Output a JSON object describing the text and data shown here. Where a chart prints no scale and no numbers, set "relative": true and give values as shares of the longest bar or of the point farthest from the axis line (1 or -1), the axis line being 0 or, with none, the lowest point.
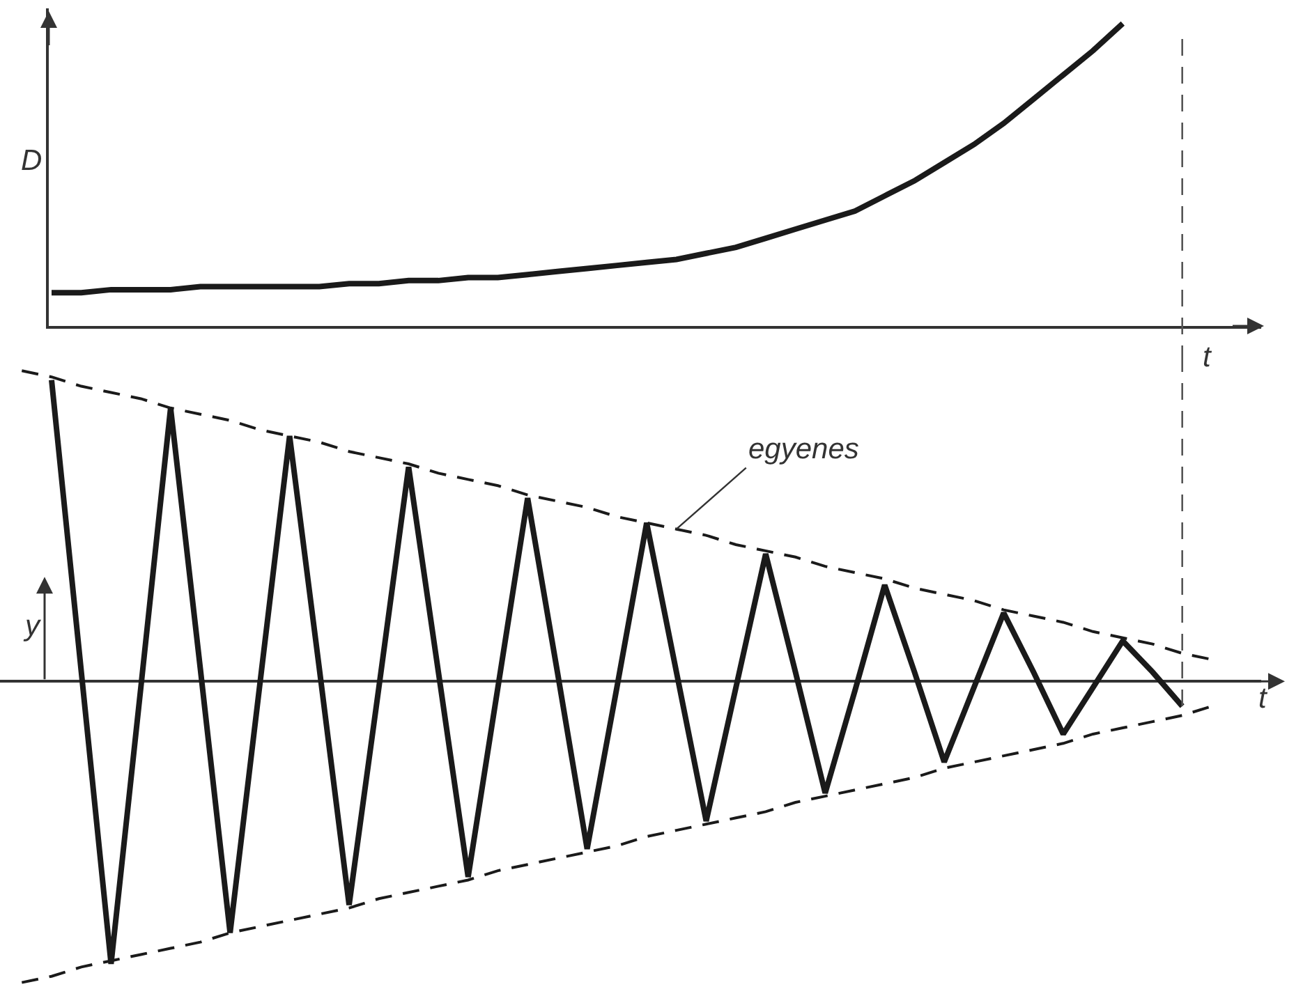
{
  "chart_data": [
    {
      "type": "line",
      "ylabel": "D",
      "xlabel": "t",
      "relative": true,
      "categories": [
        null,
        null,
        null,
        null,
        null,
        null,
        null,
        null,
        null,
        null,
        null,
        null,
        null,
        null,
        null,
        null,
        null,
        null,
        null,
        null,
        null,
        null,
        null,
        null,
        null,
        null,
        null,
        null,
        null,
        null,
        null,
        null,
        null,
        null,
        null,
        null,
        null,
        null,
        null,
        null,
        null
      ],
      "series": [
        {
          "color": "#1a1a1a",
          "values": [
            null,
            0.11,
            0.11,
            0.12,
            0.12,
            0.12,
            0.13,
            0.13,
            0.13,
            0.13,
            0.13,
            0.14,
            0.14,
            0.15,
            0.15,
            0.16,
            0.16,
            0.17,
            0.18,
            0.19,
            0.2,
            0.21,
            0.22,
            0.24,
            0.26,
            0.29,
            0.32,
            0.35,
            0.38,
            0.43,
            0.48,
            0.54,
            0.6,
            0.67,
            0.75,
            0.83,
            0.91,
            1.0,
            null,
            null,
            null
          ]
        }
      ]
    },
    {
      "type": "line",
      "ylabel": "y",
      "xlabel": "t",
      "relative": true,
      "categories": [
        null,
        null,
        null,
        null,
        null,
        null,
        null,
        null,
        null,
        null,
        null,
        null,
        null,
        null,
        null,
        null,
        null,
        null,
        null,
        null,
        null,
        null,
        null,
        null,
        null,
        null,
        null,
        null,
        null,
        null,
        null,
        null,
        null,
        null,
        null,
        null,
        null,
        null,
        null,
        null,
        null
      ],
      "series": [
        {
          "color": "#1a1a1a",
          "values": [
            null,
            0.97,
            0.03,
            -0.91,
            -0.02,
            0.88,
            0.04,
            -0.81,
            -0.01,
            0.79,
            0.04,
            -0.72,
            -0.02,
            0.69,
            0.03,
            -0.63,
            -0.02,
            0.59,
            0.03,
            -0.54,
            -0.02,
            0.51,
            0.03,
            -0.45,
            -0.02,
            0.41,
            0.03,
            -0.36,
            -0.03,
            0.31,
            0.03,
            -0.26,
            -0.02,
            0.22,
            0.03,
            -0.17,
            -0.02,
            0.13,
            0.03,
            -0.08,
            null
          ]
        },
        {
          "color": "#1a1a1a",
          "line_style": "dashed",
          "values": [
            1.0,
            0.98,
            0.95,
            0.93,
            0.91,
            0.88,
            0.86,
            0.84,
            0.81,
            0.79,
            0.77,
            0.74,
            0.72,
            0.7,
            0.67,
            0.65,
            0.63,
            0.6,
            0.58,
            0.56,
            0.53,
            0.51,
            0.49,
            0.47,
            0.44,
            0.42,
            0.4,
            0.37,
            0.35,
            0.33,
            0.3,
            0.28,
            0.26,
            0.23,
            0.21,
            0.19,
            0.16,
            0.14,
            0.12,
            0.09,
            0.07
          ]
        },
        {
          "color": "#1a1a1a",
          "line_style": "dashed",
          "values": [
            -0.97,
            -0.95,
            -0.92,
            -0.9,
            -0.88,
            -0.86,
            -0.84,
            -0.81,
            -0.79,
            -0.77,
            -0.75,
            -0.73,
            -0.7,
            -0.68,
            -0.66,
            -0.64,
            -0.61,
            -0.59,
            -0.57,
            -0.55,
            -0.53,
            -0.5,
            -0.48,
            -0.46,
            -0.44,
            -0.42,
            -0.39,
            -0.37,
            -0.35,
            -0.33,
            -0.31,
            -0.28,
            -0.26,
            -0.24,
            -0.22,
            -0.2,
            -0.17,
            -0.15,
            -0.13,
            -0.11,
            -0.08
          ]
        }
      ],
      "annotations": [
        "egyenes"
      ]
    }
  ]
}
